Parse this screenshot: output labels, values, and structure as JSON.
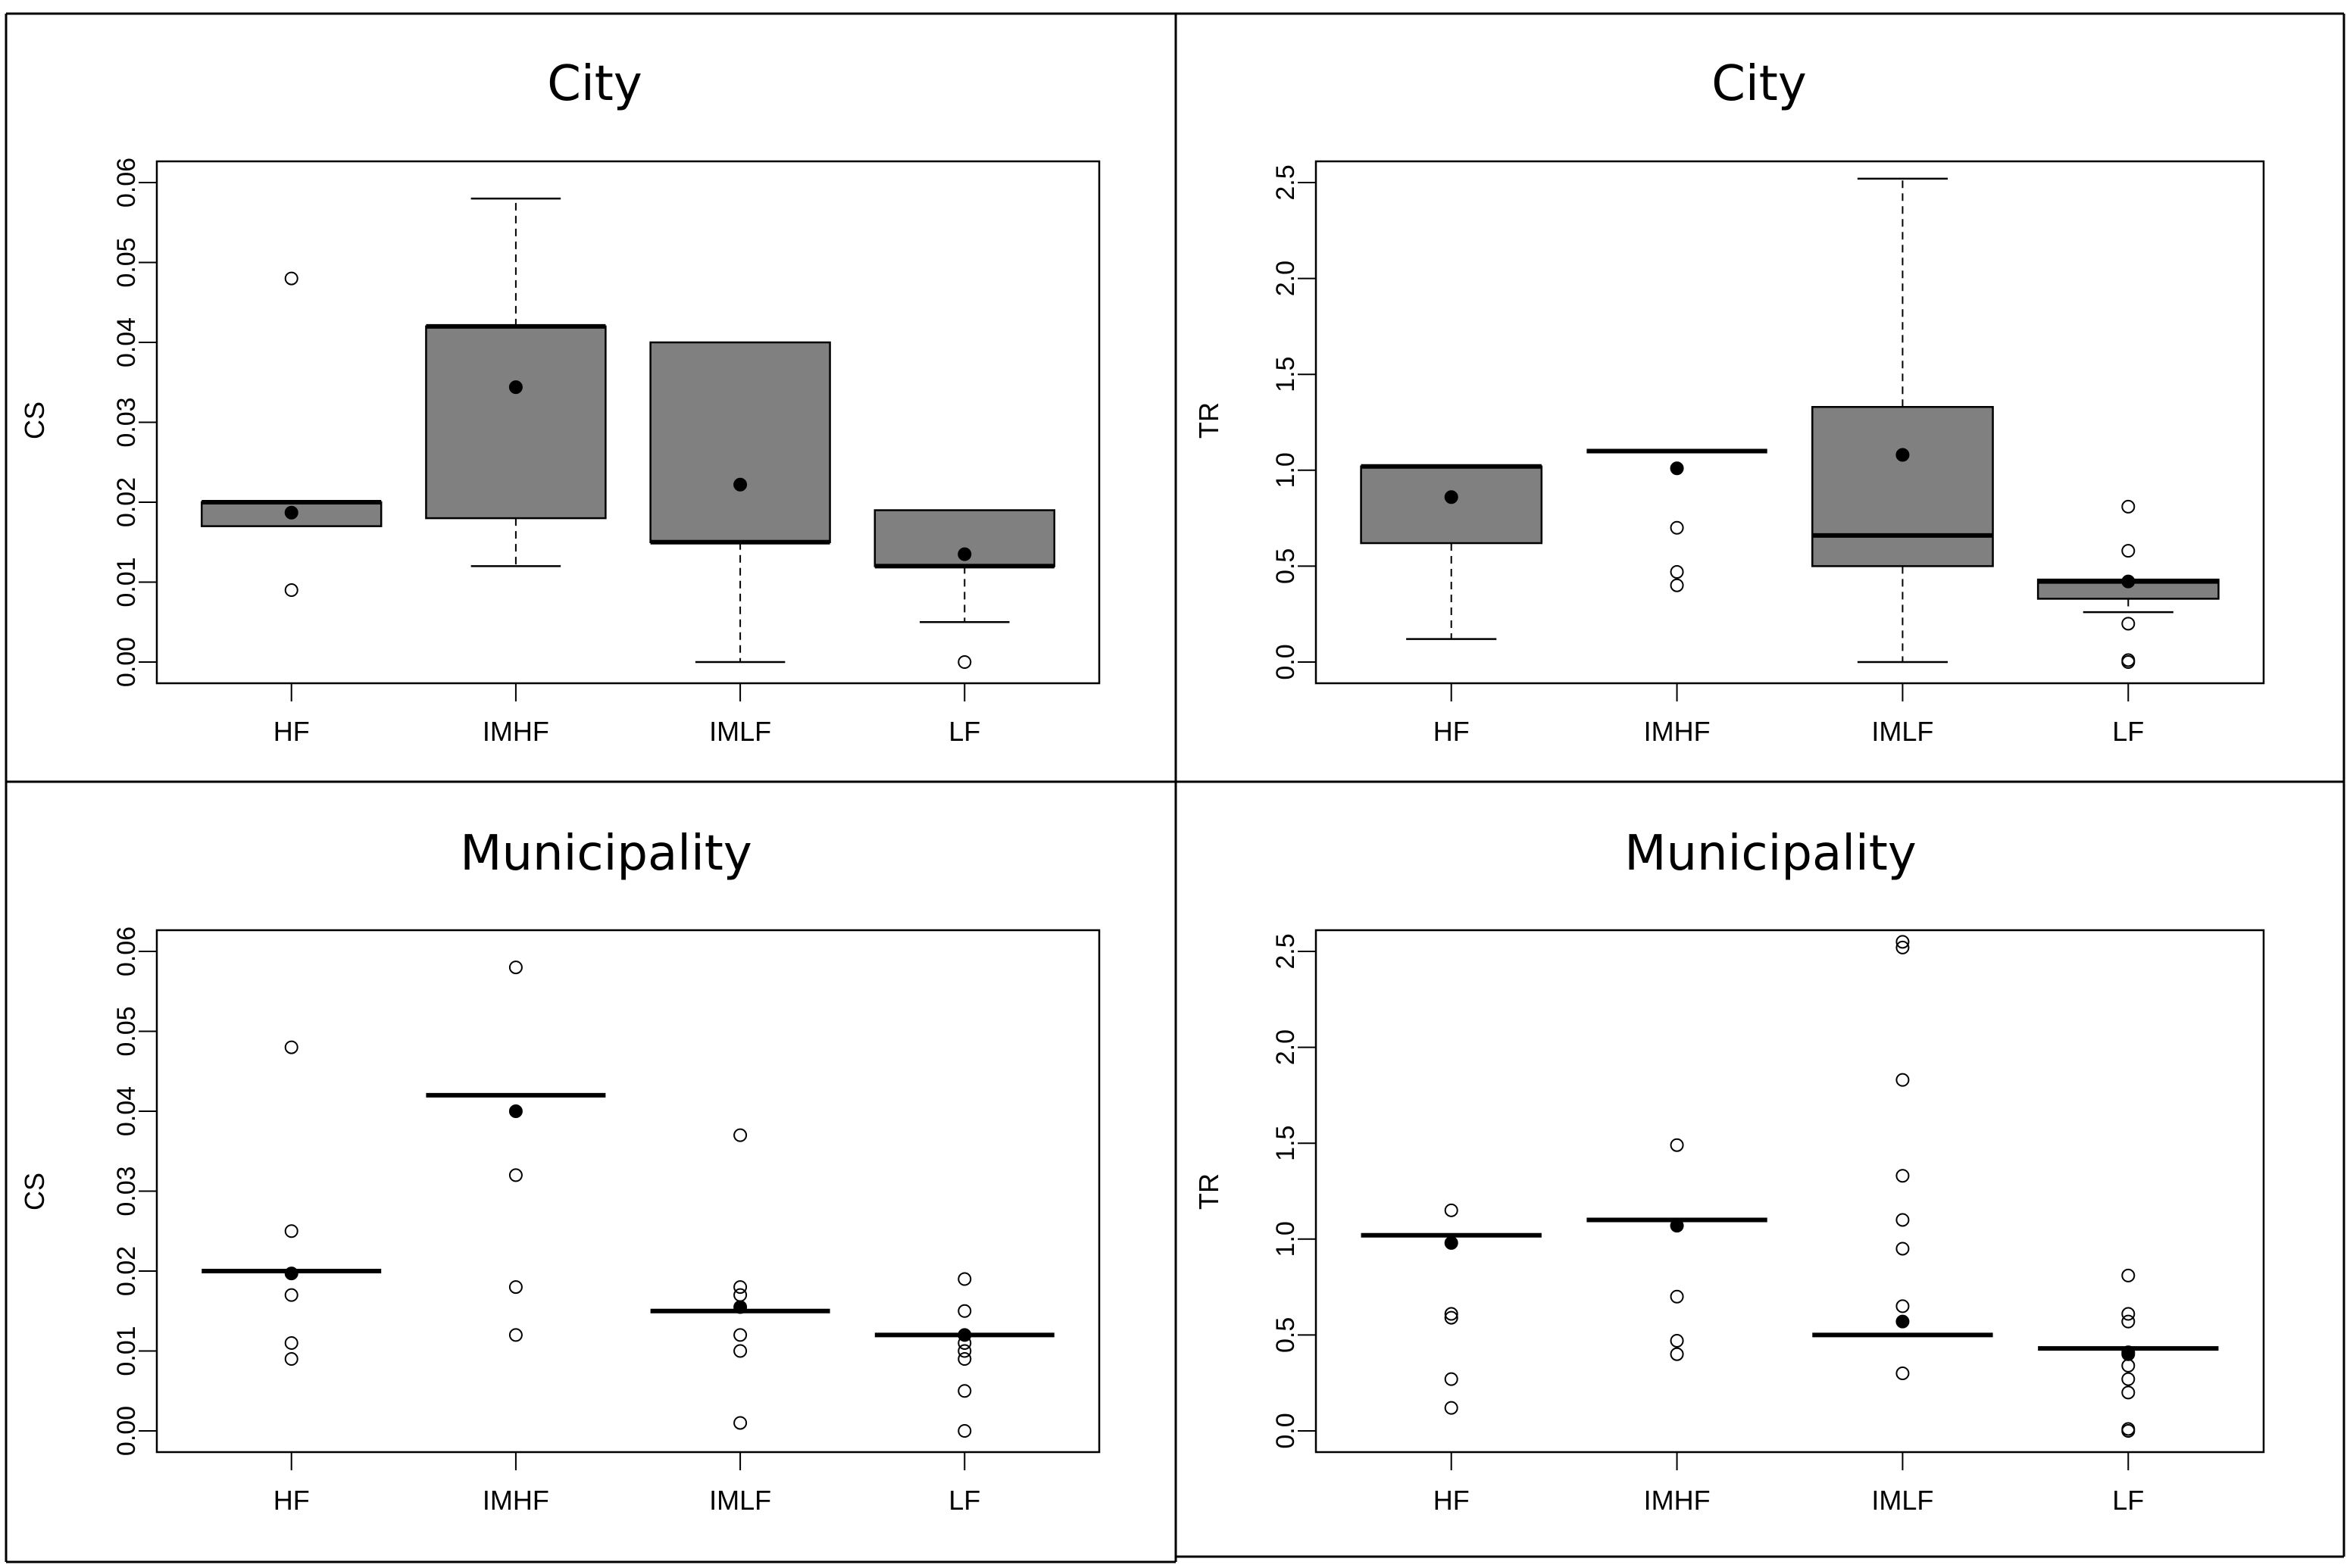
{
  "colors": {
    "box_fill": "#808080",
    "stroke": "#000000",
    "background": "#ffffff",
    "divider": "#000000"
  },
  "chart_data": [
    {
      "type": "boxplot",
      "title": "City",
      "ylabel": "CS",
      "xlabel": "",
      "categories": [
        "HF",
        "IMHF",
        "IMLF",
        "LF"
      ],
      "ylim": [
        0,
        0.06
      ],
      "yticks": [
        "0.00",
        "0.01",
        "0.02",
        "0.03",
        "0.04",
        "0.05",
        "0.06"
      ],
      "boxes": [
        {
          "q1": 0.017,
          "median": 0.02,
          "q3": 0.02,
          "whisker_low": 0.017,
          "whisker_high": 0.02,
          "mean": 0.0187,
          "outliers": [
            0.048,
            0.009
          ]
        },
        {
          "q1": 0.018,
          "median": 0.042,
          "q3": 0.042,
          "whisker_low": 0.012,
          "whisker_high": 0.058,
          "mean": 0.0344,
          "outliers": []
        },
        {
          "q1": 0.015,
          "median": 0.015,
          "q3": 0.04,
          "whisker_low": 0.0,
          "whisker_high": 0.04,
          "mean": 0.0222,
          "outliers": []
        },
        {
          "q1": 0.012,
          "median": 0.012,
          "q3": 0.019,
          "whisker_low": 0.005,
          "whisker_high": 0.019,
          "mean": 0.0135,
          "outliers": [
            0.0
          ]
        }
      ]
    },
    {
      "type": "boxplot",
      "title": "City",
      "ylabel": "TR",
      "xlabel": "",
      "categories": [
        "HF",
        "IMHF",
        "IMLF",
        "LF"
      ],
      "ylim": [
        0,
        2.5
      ],
      "yticks": [
        "0.0",
        "0.5",
        "1.0",
        "1.5",
        "2.0",
        "2.5"
      ],
      "boxes": [
        {
          "q1": 0.62,
          "median": 1.02,
          "q3": 1.02,
          "whisker_low": 0.12,
          "whisker_high": 1.02,
          "mean": 0.86,
          "outliers": []
        },
        {
          "q1": 1.1,
          "median": 1.1,
          "q3": 1.1,
          "whisker_low": 1.1,
          "whisker_high": 1.1,
          "mean": 1.01,
          "outliers": [
            0.7,
            0.47,
            0.4
          ]
        },
        {
          "q1": 0.5,
          "median": 0.66,
          "q3": 1.33,
          "whisker_low": 0.0,
          "whisker_high": 2.52,
          "mean": 1.08,
          "outliers": []
        },
        {
          "q1": 0.33,
          "median": 0.42,
          "q3": 0.43,
          "whisker_low": 0.26,
          "whisker_high": 0.43,
          "mean": 0.42,
          "outliers": [
            0.81,
            0.58,
            0.2,
            0.01,
            0.0
          ]
        }
      ]
    },
    {
      "type": "boxplot",
      "title": "Municipality",
      "ylabel": "CS",
      "xlabel": "",
      "categories": [
        "HF",
        "IMHF",
        "IMLF",
        "LF"
      ],
      "ylim": [
        0,
        0.06
      ],
      "yticks": [
        "0.00",
        "0.01",
        "0.02",
        "0.03",
        "0.04",
        "0.05",
        "0.06"
      ],
      "boxes": [
        {
          "q1": 0.02,
          "median": 0.02,
          "q3": 0.02,
          "whisker_low": 0.02,
          "whisker_high": 0.02,
          "mean": 0.0197,
          "outliers": [
            0.048,
            0.025,
            0.017,
            0.011,
            0.009
          ]
        },
        {
          "q1": 0.042,
          "median": 0.042,
          "q3": 0.042,
          "whisker_low": 0.042,
          "whisker_high": 0.042,
          "mean": 0.04,
          "outliers": [
            0.058,
            0.032,
            0.018,
            0.012
          ]
        },
        {
          "q1": 0.015,
          "median": 0.015,
          "q3": 0.015,
          "whisker_low": 0.015,
          "whisker_high": 0.015,
          "mean": 0.0155,
          "outliers": [
            0.037,
            0.018,
            0.017,
            0.012,
            0.01,
            0.001
          ]
        },
        {
          "q1": 0.012,
          "median": 0.012,
          "q3": 0.012,
          "whisker_low": 0.012,
          "whisker_high": 0.012,
          "mean": 0.012,
          "outliers": [
            0.019,
            0.015,
            0.011,
            0.01,
            0.009,
            0.005,
            0.0
          ]
        }
      ]
    },
    {
      "type": "boxplot",
      "title": "Municipality",
      "ylabel": "TR",
      "xlabel": "",
      "categories": [
        "HF",
        "IMHF",
        "IMLF",
        "LF"
      ],
      "ylim": [
        0,
        2.5
      ],
      "yticks": [
        "0.0",
        "0.5",
        "1.0",
        "1.5",
        "2.0",
        "2.5"
      ],
      "boxes": [
        {
          "q1": 1.02,
          "median": 1.02,
          "q3": 1.02,
          "whisker_low": 1.02,
          "whisker_high": 1.02,
          "mean": 0.98,
          "outliers": [
            1.15,
            0.61,
            0.59,
            0.27,
            0.12
          ]
        },
        {
          "q1": 1.1,
          "median": 1.1,
          "q3": 1.1,
          "whisker_low": 1.1,
          "whisker_high": 1.1,
          "mean": 1.07,
          "outliers": [
            1.49,
            0.7,
            0.47,
            0.4
          ]
        },
        {
          "q1": 0.5,
          "median": 0.5,
          "q3": 0.5,
          "whisker_low": 0.5,
          "whisker_high": 0.5,
          "mean": 0.57,
          "outliers": [
            2.55,
            2.52,
            1.83,
            1.33,
            1.1,
            0.95,
            0.65,
            0.3
          ]
        },
        {
          "q1": 0.43,
          "median": 0.43,
          "q3": 0.43,
          "whisker_low": 0.43,
          "whisker_high": 0.43,
          "mean": 0.4,
          "outliers": [
            0.81,
            0.61,
            0.57,
            0.41,
            0.34,
            0.27,
            0.2,
            0.01,
            0.0
          ]
        }
      ]
    }
  ]
}
